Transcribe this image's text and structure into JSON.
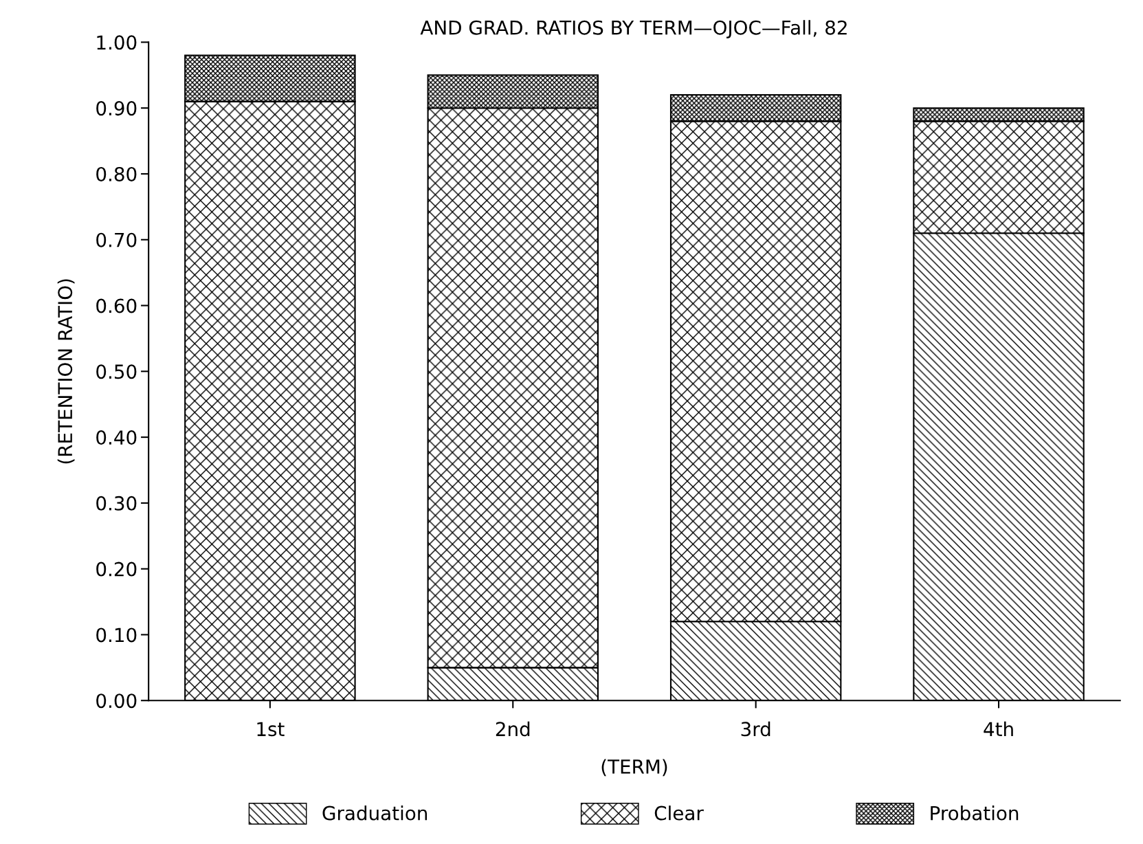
{
  "chart_data": {
    "type": "bar",
    "title": "AND GRAD. RATIOS BY TERM—OJOC—Fall, 82",
    "xlabel": "(TERM)",
    "ylabel": "(RETENTION RATIO)",
    "categories": [
      "1st",
      "2nd",
      "3rd",
      "4th"
    ],
    "stacked": true,
    "series": [
      {
        "name": "Graduation",
        "color": "#000000",
        "values": [
          0,
          0.05,
          0.12,
          0.71
        ]
      },
      {
        "name": "Clear",
        "color": "#000000",
        "values": [
          0.91,
          0.85,
          0.76,
          0.17
        ]
      },
      {
        "name": "Probation",
        "color": "#000000",
        "values": [
          0.07,
          0.05,
          0.04,
          0.02
        ]
      }
    ],
    "ylim": [
      0,
      1
    ],
    "yticks": [
      {
        "value": 0,
        "label": "0.00"
      },
      {
        "value": 0.1,
        "label": "0.10"
      },
      {
        "value": 0.2,
        "label": "0.20"
      },
      {
        "value": 0.3,
        "label": "0.30"
      },
      {
        "value": 0.4,
        "label": "0.40"
      },
      {
        "value": 0.5,
        "label": "0.50"
      },
      {
        "value": 0.6,
        "label": "0.60"
      },
      {
        "value": 0.7,
        "label": "0.70"
      },
      {
        "value": 0.8,
        "label": "0.80"
      },
      {
        "value": 0.9,
        "label": "0.90"
      },
      {
        "value": 1,
        "label": "1.00"
      }
    ],
    "grid": false,
    "legend": "bottom"
  }
}
